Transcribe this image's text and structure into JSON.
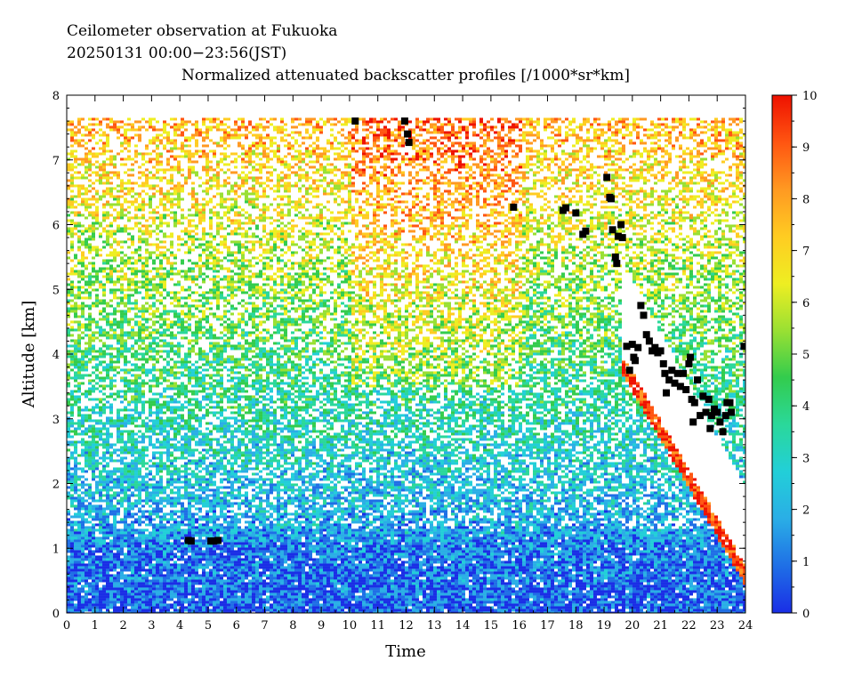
{
  "chart_data": {
    "type": "heatmap",
    "title_line1": "Ceilometer observation at Fukuoka",
    "title_line2": "20250131   00:00−23:56(JST)",
    "title_line3": "Normalized attenuated backscatter profiles [/1000*sr*km]",
    "xlabel": "Time",
    "ylabel": "Altitude [km]",
    "xlim": [
      0,
      24
    ],
    "ylim": [
      0,
      8
    ],
    "xticks": [
      "0",
      "1",
      "2",
      "3",
      "4",
      "5",
      "6",
      "7",
      "8",
      "9",
      "10",
      "11",
      "12",
      "13",
      "14",
      "15",
      "16",
      "17",
      "18",
      "19",
      "20",
      "21",
      "22",
      "23",
      "24"
    ],
    "yticks": [
      "0",
      "1",
      "2",
      "3",
      "4",
      "5",
      "6",
      "7",
      "8"
    ],
    "colorbar": {
      "range": [
        0,
        10
      ],
      "ticks": [
        "0",
        "1",
        "2",
        "3",
        "4",
        "5",
        "6",
        "7",
        "8",
        "9",
        "10"
      ],
      "colors": [
        "#1a2ee6",
        "#1f6fe6",
        "#2aaee6",
        "#22cfd8",
        "#2ad89a",
        "#33cc4d",
        "#99e033",
        "#eeee22",
        "#ffcc22",
        "#ff9922",
        "#ff5511",
        "#ee1100"
      ]
    },
    "data_top_altitude": 7.65,
    "cloud_base_points": [
      [
        4.3,
        1.12
      ],
      [
        4.4,
        1.11
      ],
      [
        5.1,
        1.11
      ],
      [
        5.2,
        1.11
      ],
      [
        5.35,
        1.12
      ],
      [
        10.2,
        7.6
      ],
      [
        11.95,
        7.6
      ],
      [
        12.05,
        7.4
      ],
      [
        12.1,
        7.27
      ],
      [
        15.8,
        6.27
      ],
      [
        17.55,
        6.22
      ],
      [
        17.65,
        6.26
      ],
      [
        18.0,
        6.18
      ],
      [
        18.25,
        5.85
      ],
      [
        18.35,
        5.9
      ],
      [
        19.1,
        6.73
      ],
      [
        19.2,
        6.42
      ],
      [
        19.25,
        6.4
      ],
      [
        19.3,
        5.92
      ],
      [
        19.4,
        5.5
      ],
      [
        19.45,
        5.4
      ],
      [
        19.5,
        5.82
      ],
      [
        19.6,
        6.0
      ],
      [
        19.65,
        5.8
      ],
      [
        19.8,
        4.12
      ],
      [
        19.9,
        3.75
      ],
      [
        20.0,
        4.15
      ],
      [
        20.05,
        3.95
      ],
      [
        20.1,
        3.9
      ],
      [
        20.2,
        4.1
      ],
      [
        20.3,
        4.75
      ],
      [
        20.4,
        4.6
      ],
      [
        20.5,
        4.3
      ],
      [
        20.6,
        4.2
      ],
      [
        20.7,
        4.05
      ],
      [
        20.8,
        4.1
      ],
      [
        20.9,
        4.02
      ],
      [
        21.0,
        4.05
      ],
      [
        21.1,
        3.85
      ],
      [
        21.15,
        3.7
      ],
      [
        21.2,
        3.4
      ],
      [
        21.3,
        3.6
      ],
      [
        21.4,
        3.75
      ],
      [
        21.5,
        3.55
      ],
      [
        21.6,
        3.7
      ],
      [
        21.7,
        3.5
      ],
      [
        21.8,
        3.7
      ],
      [
        21.9,
        3.45
      ],
      [
        22.0,
        3.85
      ],
      [
        22.05,
        3.95
      ],
      [
        22.1,
        3.3
      ],
      [
        22.15,
        2.95
      ],
      [
        22.2,
        3.25
      ],
      [
        22.3,
        3.6
      ],
      [
        22.4,
        3.05
      ],
      [
        22.5,
        3.35
      ],
      [
        22.6,
        3.1
      ],
      [
        22.7,
        3.3
      ],
      [
        22.75,
        2.85
      ],
      [
        22.8,
        3.05
      ],
      [
        22.9,
        3.15
      ],
      [
        23.0,
        3.1
      ],
      [
        23.1,
        2.95
      ],
      [
        23.2,
        2.8
      ],
      [
        23.3,
        3.05
      ],
      [
        23.35,
        3.25
      ],
      [
        23.45,
        3.25
      ],
      [
        23.5,
        3.1
      ],
      [
        23.95,
        4.12
      ]
    ]
  }
}
